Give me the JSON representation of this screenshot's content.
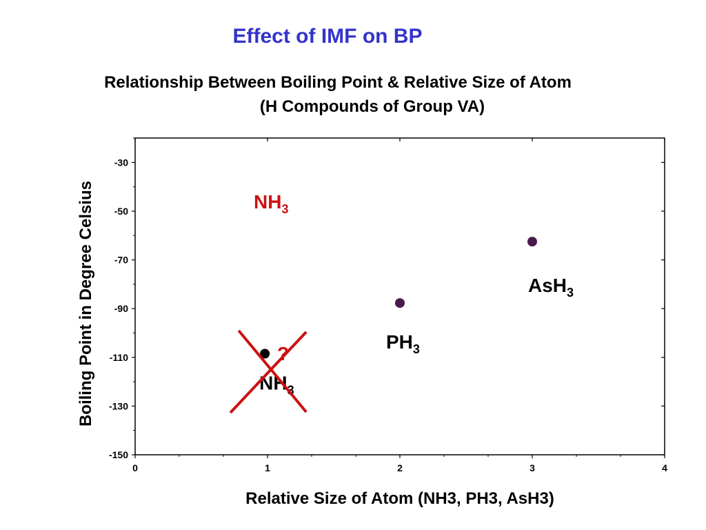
{
  "slide": {
    "title": "Effect of IMF on BP",
    "title_color": "#3333cc"
  },
  "chart_data": {
    "type": "scatter",
    "title": "Relationship Between Boiling Point & Relative Size of Atom",
    "subtitle": "(H Compounds of Group VA)",
    "xlabel": "Relative Size of Atom (NH3, PH3, AsH3)",
    "ylabel": "Boiling Point in Degree Celsius",
    "xlim": [
      0,
      4
    ],
    "ylim": [
      -150,
      -20
    ],
    "xticks": [
      0,
      1,
      2,
      3,
      4
    ],
    "yticks": [
      -150,
      -130,
      -110,
      -90,
      -70,
      -50,
      -30
    ],
    "grid": false,
    "point_color": "#4a1a4a",
    "points": [
      {
        "x": 0.98,
        "y": -108.5,
        "color": "#000000",
        "label": "NH",
        "sub": "3"
      },
      {
        "x": 2.0,
        "y": -87.7,
        "color": "#4a1a4a",
        "label": "PH",
        "sub": "3"
      },
      {
        "x": 3.0,
        "y": -62.5,
        "color": "#4a1a4a",
        "label": "AsH",
        "sub": "3"
      }
    ],
    "annotations": {
      "corrected_label": "NH",
      "corrected_sub": "3",
      "corrected_color": "#cc1111",
      "question_mark": "?",
      "question_color": "#cc1111",
      "cross_color": "#cc1111",
      "cross_center": {
        "x": 0.98,
        "y": -116
      }
    }
  }
}
